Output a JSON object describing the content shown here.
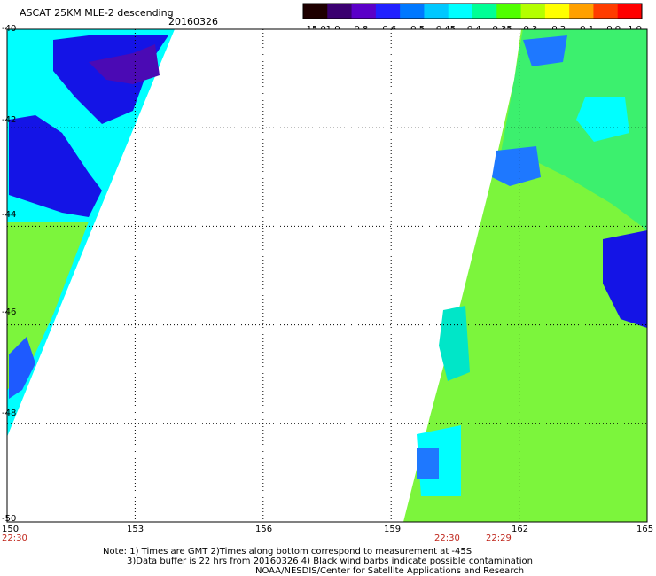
{
  "header": {
    "title": "ASCAT 25KM MLE-2 descending",
    "date": "20160326"
  },
  "colorbar": {
    "labels": [
      "-15.0",
      "-1.0",
      "-0.8",
      "-0.6",
      "-0.5",
      "-0.45",
      "-0.4",
      "-0.35",
      "-0.3",
      "-0.2",
      "-0.1",
      "0.0",
      "1.0"
    ],
    "colors": [
      "#1e0000",
      "#3a0070",
      "#5a00c8",
      "#2020ff",
      "#0078ff",
      "#00c8ff",
      "#00ffff",
      "#00ff96",
      "#50ff00",
      "#b4ff00",
      "#ffff00",
      "#ffa000",
      "#ff3c00",
      "#ff0000"
    ]
  },
  "map": {
    "lat_labels": [
      "-40",
      "-42",
      "-44",
      "-46",
      "-48",
      "-50"
    ],
    "lon_labels": [
      "150",
      "153",
      "156",
      "159",
      "162",
      "165"
    ],
    "lat_range": [
      -50,
      -40
    ],
    "lon_range": [
      150,
      165
    ],
    "times": {
      "left": "22:30",
      "mid": "22:30",
      "right": "22:29"
    }
  },
  "notes": {
    "line1": "Note: 1) Times are GMT 2)Times along bottom correspond to measurement at -45S",
    "line2": "3)Data buffer is 22 hrs from 20160326 4) Black wind barbs indicate possible contamination",
    "line3": "NOAA/NESDIS/Center for Satellite Applications and Research"
  }
}
